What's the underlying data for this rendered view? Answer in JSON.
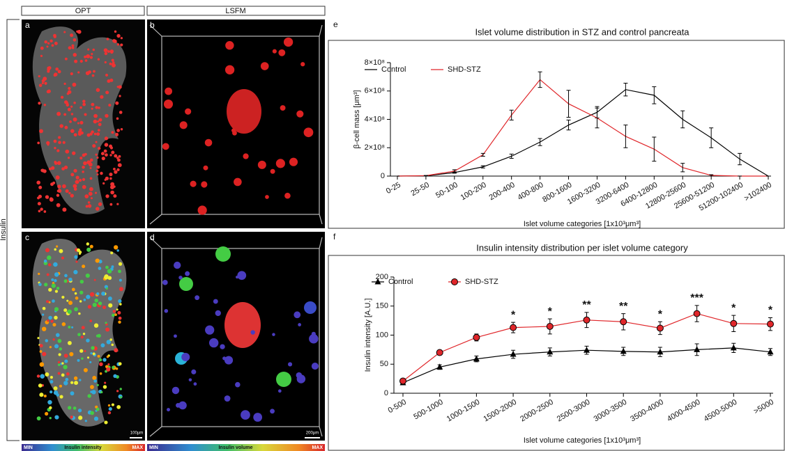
{
  "panels": {
    "headers": [
      "OPT",
      "LSFM"
    ],
    "row_label": "Insulin",
    "letters": [
      "a",
      "b",
      "c",
      "d",
      "e",
      "f"
    ],
    "scale_bars": [
      "100µm",
      "200µm"
    ],
    "colorbars": [
      {
        "min": "MIN",
        "label": "Insulin intensity",
        "max": "MAX"
      },
      {
        "min": "MIN",
        "label": "Insulin volume",
        "max": "MAX"
      }
    ]
  },
  "chart_data": [
    {
      "type": "line",
      "title": "Islet volume distribution in STZ and control pancreata",
      "x_label": "Islet volume categories [1x10³μm³]",
      "y_label": "β-cell mass [μm³]",
      "categories": [
        "0-25",
        "25-50",
        "50-100",
        "100-200",
        "200-400",
        "400-800",
        "800-1600",
        "1600-3200",
        "3200-6400",
        "6400-12800",
        "12800-25600",
        "25600-51200",
        "51200-102400",
        ">102400"
      ],
      "series": [
        {
          "name": "Control",
          "color": "#000000",
          "marker": "none",
          "values": [
            0,
            2000000,
            25000000,
            65000000,
            140000000,
            240000000,
            360000000,
            450000000,
            610000000,
            570000000,
            400000000,
            270000000,
            120000000,
            0
          ],
          "errors": [
            0,
            1000000,
            5000000,
            8000000,
            15000000,
            25000000,
            35000000,
            40000000,
            45000000,
            60000000,
            60000000,
            70000000,
            40000000,
            0
          ]
        },
        {
          "name": "SHD-STZ",
          "color": "#e0262a",
          "marker": "none",
          "values": [
            0,
            3000000,
            35000000,
            150000000,
            430000000,
            680000000,
            510000000,
            410000000,
            280000000,
            190000000,
            60000000,
            5000000,
            0,
            0
          ],
          "errors": [
            0,
            1000000,
            10000000,
            10000000,
            35000000,
            55000000,
            95000000,
            70000000,
            80000000,
            85000000,
            30000000,
            5000000,
            0,
            0
          ]
        }
      ],
      "ylim": [
        0,
        800000000
      ],
      "yticks": [
        0,
        {
          "value": 200000000,
          "label": "2×10⁸"
        },
        {
          "value": 400000000,
          "label": "4×10⁸"
        },
        {
          "value": 600000000,
          "label": "6×10⁸"
        },
        {
          "value": 800000000,
          "label": "8×10⁸"
        }
      ],
      "legend": "top-left"
    },
    {
      "type": "line",
      "title": "Insulin intensity distribution per islet volume category",
      "x_label": "Islet volume categories [1x10³μm³]",
      "y_label": "Insulin intensity [A.U.]",
      "categories": [
        "0-500",
        "500-1000",
        "1000-1500",
        "1500-2000",
        "2000-2500",
        "2500-3000",
        "3000-3500",
        "3500-4000",
        "4000-4500",
        "4500-5000",
        ">5000"
      ],
      "series": [
        {
          "name": "Control",
          "color": "#000000",
          "marker": "triangle",
          "values": [
            18,
            45,
            59,
            67,
            71,
            74,
            72,
            71,
            75,
            78,
            71
          ],
          "errors": [
            2,
            4,
            5,
            7,
            7,
            7,
            7,
            8,
            10,
            8,
            6
          ]
        },
        {
          "name": "SHD-STZ",
          "color": "#e0262a",
          "marker": "circle",
          "values": [
            21,
            70,
            96,
            113,
            115,
            126,
            123,
            112,
            137,
            120,
            119
          ],
          "errors": [
            2,
            4,
            6,
            9,
            13,
            13,
            14,
            11,
            14,
            14,
            11
          ]
        }
      ],
      "significance": [
        null,
        null,
        null,
        "*",
        "*",
        "**",
        "**",
        "*",
        "***",
        "*",
        "*"
      ],
      "ylim": [
        0,
        200
      ],
      "yticks": [
        0,
        50,
        100,
        150,
        200
      ],
      "legend": "top-left"
    }
  ]
}
